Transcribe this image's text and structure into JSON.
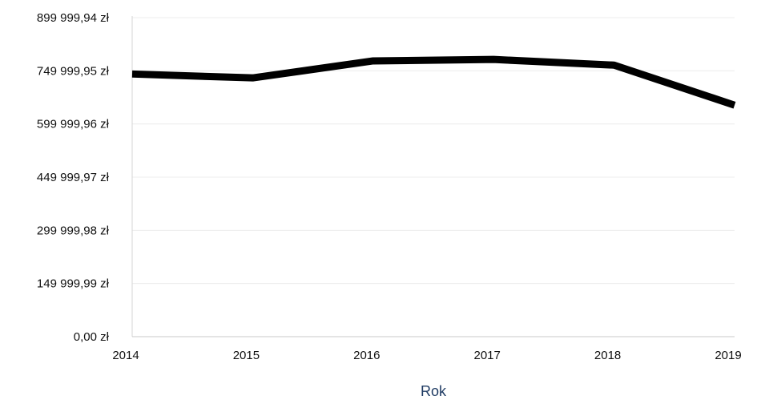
{
  "chart_data": {
    "type": "line",
    "xlabel": "Rok",
    "ylabel": "",
    "categories": [
      "2014",
      "2015",
      "2016",
      "2017",
      "2018",
      "2019"
    ],
    "series": [
      {
        "values": [
          741000,
          730000,
          778000,
          782000,
          766000,
          653000
        ]
      }
    ],
    "ylim": [
      0,
      899999.94
    ],
    "yticks": [
      0,
      149999.99,
      299999.98,
      449999.97,
      599999.96,
      749999.95,
      899999.94
    ],
    "ytick_labels": [
      "0,00 zł",
      "149 999,99 zł",
      "299 999,98 zł",
      "449 999,97 zł",
      "599 999,96 zł",
      "749 999,95 zł",
      "899 999,94 zł"
    ],
    "grid": true,
    "line_color": "#000000",
    "grid_color": "#ececec"
  }
}
